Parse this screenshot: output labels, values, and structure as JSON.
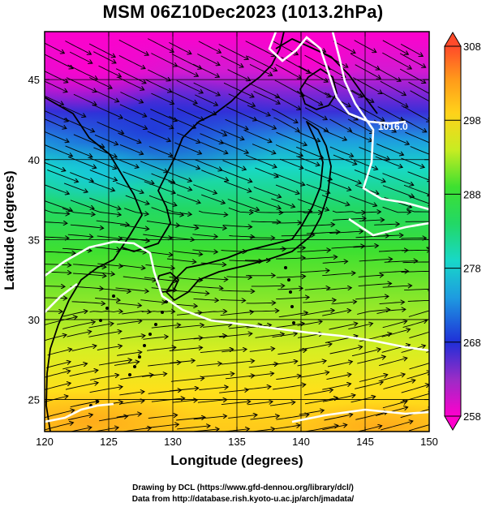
{
  "title": "MSM 06Z10Dec2023 (1013.2hPa)",
  "axes": {
    "xlabel": "Longitude (degrees)",
    "ylabel": "Latitude  (degrees)",
    "xticks": [
      "120",
      "125",
      "130",
      "135",
      "140",
      "145",
      "150"
    ],
    "yticks": [
      "25",
      "30",
      "35",
      "40",
      "45"
    ],
    "xlim": [
      120,
      150
    ],
    "ylim": [
      23,
      48
    ]
  },
  "colorbar": {
    "labels": [
      "308",
      "298",
      "288",
      "278",
      "268",
      "258"
    ],
    "range": [
      258,
      308
    ],
    "colors": [
      "#ff00cc",
      "#9a2cc6",
      "#1f2fd8",
      "#1e9be0",
      "#18d8c8",
      "#22d866",
      "#3ee030",
      "#c8ec22",
      "#ffd21a",
      "#ff9a1a",
      "#ff4a2a"
    ]
  },
  "contour": {
    "label": "1016.0",
    "color": "#ffffff"
  },
  "credits": {
    "line1": "Drawing by DCL (https://www.gfd-dennou.org/library/dcl/)",
    "line2": "Data from http://database.rish.kyoto-u.ac.jp/arch/jmadata/"
  }
}
